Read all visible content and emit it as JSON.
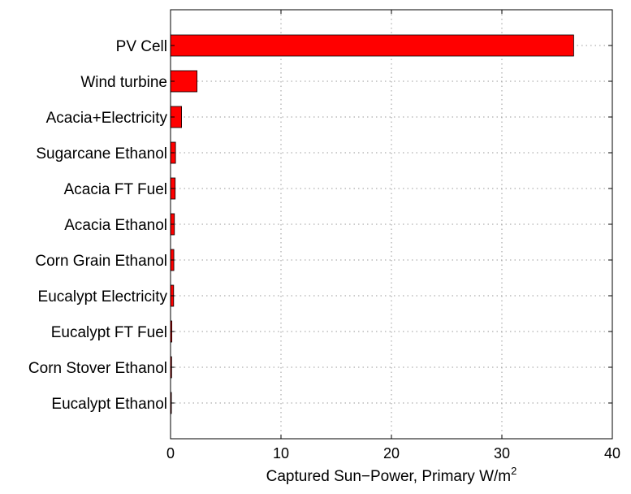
{
  "chart_data": {
    "type": "bar",
    "orientation": "horizontal",
    "categories": [
      "PV Cell",
      "Wind turbine",
      "Acacia+Electricity",
      "Sugarcane Ethanol",
      "Acacia FT Fuel",
      "Acacia Ethanol",
      "Corn Grain Ethanol",
      "Eucalypt Electricity",
      "Eucalypt FT Fuel",
      "Corn Stover Ethanol",
      "Eucalypt Ethanol"
    ],
    "values": [
      36.5,
      2.4,
      1.0,
      0.45,
      0.42,
      0.35,
      0.3,
      0.28,
      0.12,
      0.1,
      0.08
    ],
    "xlabel": "Captured Sun−Power, Primary W/m",
    "xlabel_superscript": "2",
    "xlim": [
      0,
      40
    ],
    "xticks": [
      0,
      10,
      20,
      30,
      40
    ],
    "grid": true,
    "bar_color": "#ff0000"
  }
}
